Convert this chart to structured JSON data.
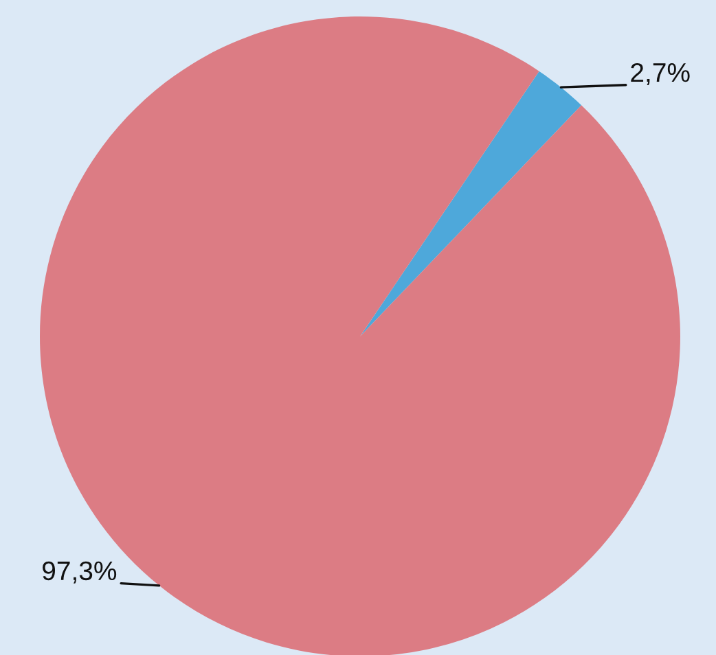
{
  "chart_data": {
    "type": "pie",
    "categories": [
      null,
      null
    ],
    "values": [
      2.7,
      97.3
    ],
    "colors": [
      "#4ea8da",
      "#dc7c84"
    ],
    "value_labels": [
      "2,7%",
      "97,3%"
    ],
    "legend": false
  }
}
